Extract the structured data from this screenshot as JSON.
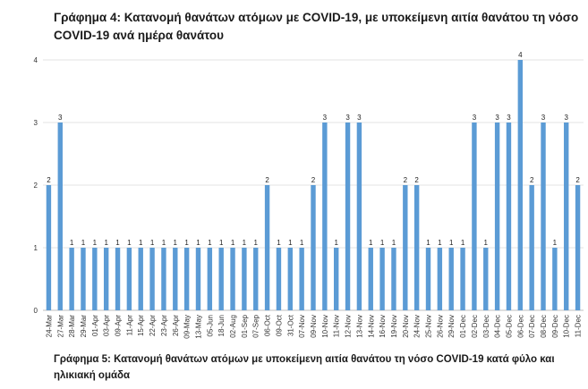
{
  "figure_title": "Γράφημα 4: Κατανομή θανάτων ατόμων με COVID-19, με υποκείμενη αιτία θανάτου τη νόσο COVID-19 ανά ημέρα θανάτου",
  "next_caption": "Γράφημα 5: Κατανομή θανάτων ατόμων με υποκείμενη αιτία θανάτου τη νόσο COVID-19 κατά φύλο και ηλικιακή ομάδα",
  "chart_data": {
    "type": "bar",
    "title": "Γράφημα 4: Κατανομή θανάτων ατόμων με COVID-19, με υποκείμενη αιτία θανάτου τη νόσο COVID-19 ανά ημέρα θανάτου",
    "xlabel": "",
    "ylabel": "",
    "ylim": [
      0,
      4
    ],
    "yticks": [
      0,
      1,
      2,
      3,
      4
    ],
    "grid": true,
    "bar_color": "#5b9bd5",
    "categories": [
      "24-Mar",
      "27-Mar",
      "28-Mar",
      "29-Mar",
      "01-Apr",
      "03-Apr",
      "09-Apr",
      "11-Apr",
      "15-Apr",
      "22-Apr",
      "23-Apr",
      "26-Apr",
      "09-May",
      "13-May",
      "05-Jun",
      "18-Jun",
      "02-Aug",
      "01-Sep",
      "07-Sep",
      "06-Oct",
      "09-Oct",
      "31-Oct",
      "07-Nov",
      "09-Nov",
      "10-Nov",
      "11-Nov",
      "12-Nov",
      "13-Nov",
      "14-Nov",
      "16-Nov",
      "19-Nov",
      "20-Nov",
      "24-Nov",
      "25-Nov",
      "26-Nov",
      "29-Nov",
      "01-Dec",
      "02-Dec",
      "03-Dec",
      "04-Dec",
      "05-Dec",
      "06-Dec",
      "07-Dec",
      "08-Dec",
      "09-Dec",
      "10-Dec",
      "11-Dec"
    ],
    "values": [
      2,
      3,
      1,
      1,
      1,
      1,
      1,
      1,
      1,
      1,
      1,
      1,
      1,
      1,
      1,
      1,
      1,
      1,
      1,
      2,
      1,
      1,
      1,
      2,
      3,
      1,
      3,
      3,
      1,
      1,
      1,
      2,
      2,
      1,
      1,
      1,
      1,
      3,
      1,
      3,
      3,
      4,
      2,
      3,
      1,
      3,
      2
    ]
  }
}
